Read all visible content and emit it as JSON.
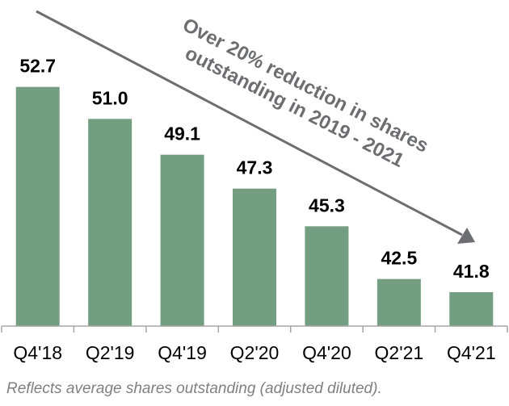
{
  "chart_data": {
    "type": "bar",
    "categories": [
      "Q4'18",
      "Q2'19",
      "Q4'19",
      "Q2'20",
      "Q4'20",
      "Q2'21",
      "Q4'21"
    ],
    "values": [
      52.7,
      51.0,
      49.1,
      47.3,
      45.3,
      42.5,
      41.8
    ],
    "value_labels": [
      "52.7",
      "51.0",
      "49.1",
      "47.3",
      "45.3",
      "42.5",
      "41.8"
    ],
    "ylim": [
      40,
      55
    ],
    "grid": false,
    "bar_color": "#739e82",
    "annotation": {
      "line1": "Over 20% reduction in shares",
      "line2": "outstanding in 2019 - 2021",
      "arrow": "downward trend arrow",
      "color": "#6d6e71"
    },
    "footnote": "Reflects average shares outstanding (adjusted diluted)."
  }
}
